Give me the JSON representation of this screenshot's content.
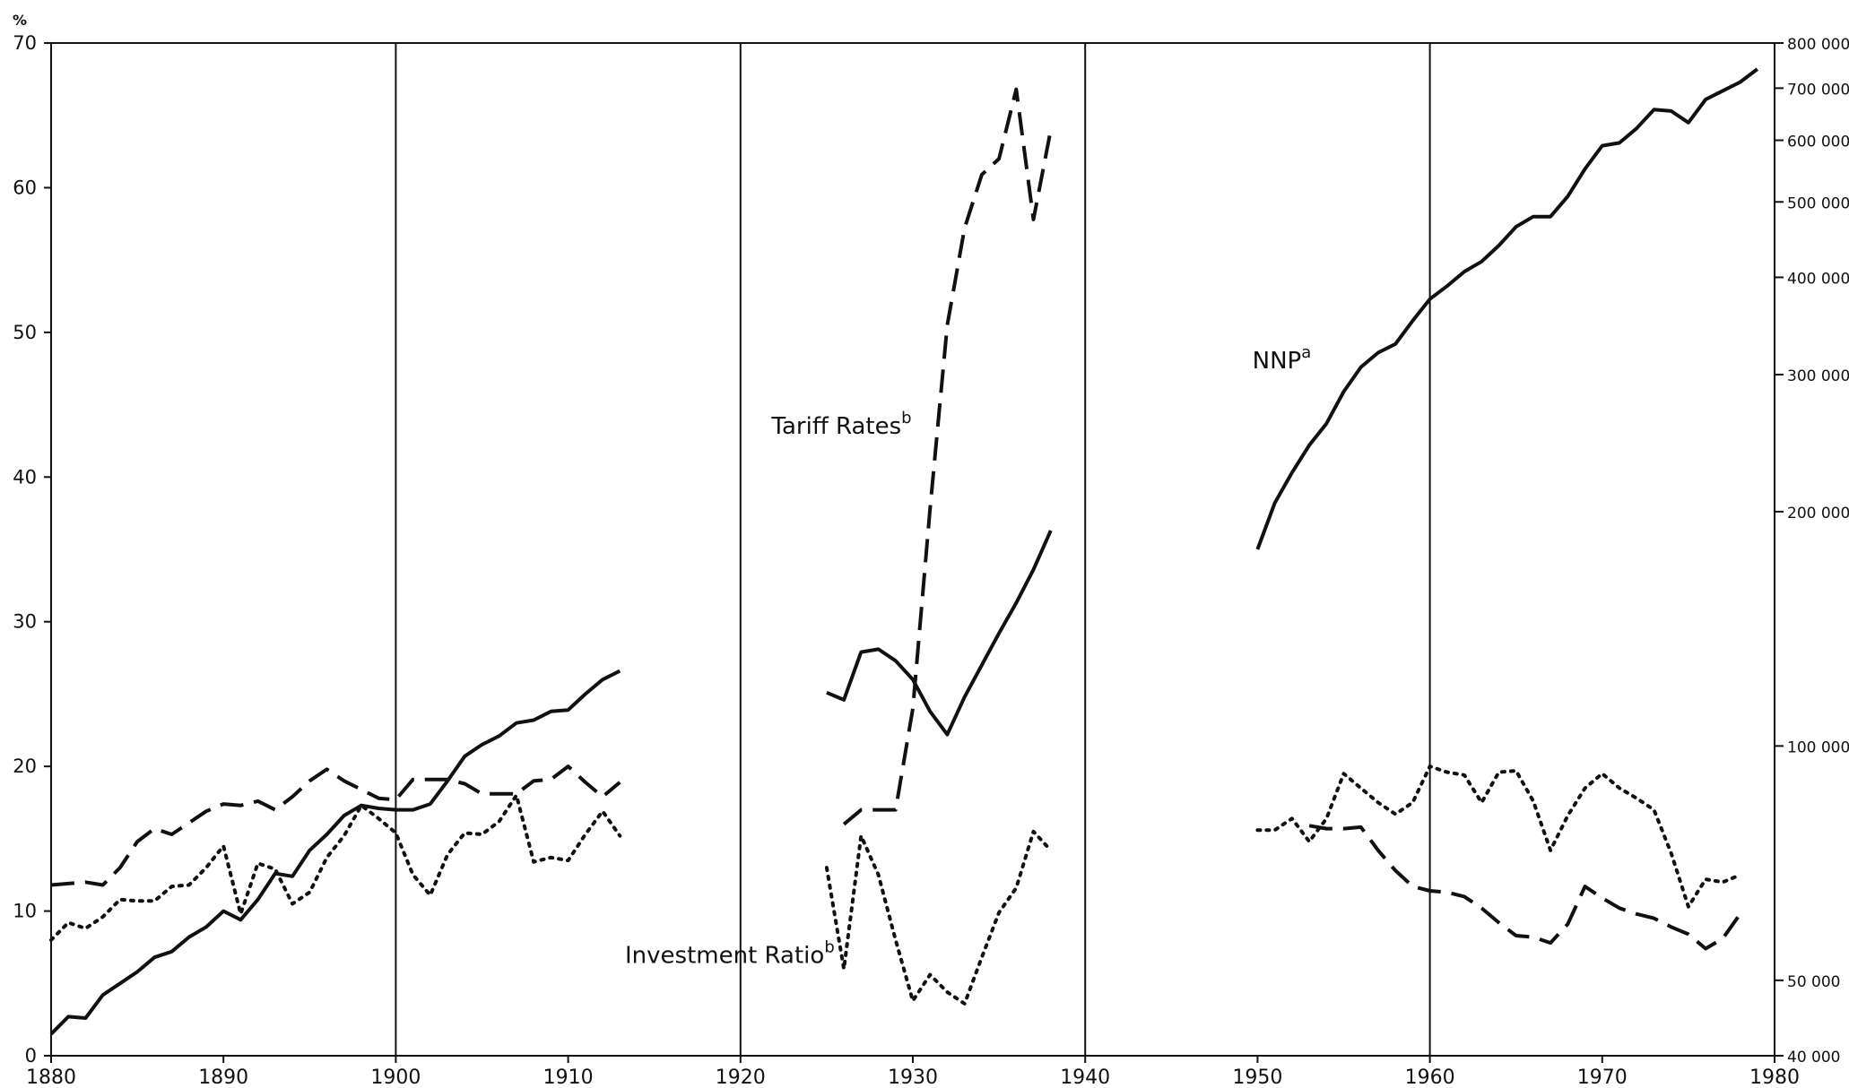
{
  "chart_data": {
    "type": "line",
    "title": "",
    "xlabel": "",
    "ylabel": "%",
    "y2label": "",
    "xlim": [
      1880,
      1980
    ],
    "ylim": [
      0,
      70
    ],
    "y2lim": [
      40000,
      800000
    ],
    "y2_scale": "log",
    "vertical_gridlines_at": [
      1900,
      1920,
      1940,
      1960
    ],
    "x_ticks": [
      1880,
      1890,
      1900,
      1910,
      1920,
      1930,
      1940,
      1950,
      1960,
      1970,
      1980
    ],
    "y_ticks": [
      0,
      10,
      20,
      30,
      40,
      50,
      60,
      70
    ],
    "y2_ticks": [
      40000,
      50000,
      100000,
      200000,
      300000,
      400000,
      500000,
      600000,
      700000,
      800000
    ],
    "y2_tick_labels": [
      "40 000",
      "50 000",
      "100 000",
      "200 000",
      "300 000",
      "400 000",
      "500 000",
      "600 000",
      "700 000",
      "800 000"
    ],
    "annotations": [
      {
        "text": "NNP",
        "sup": "a",
        "x": 1949.7,
        "y": 47.5
      },
      {
        "text": "Tariff Rates",
        "sup": "b",
        "x": 1921.8,
        "y": 43
      },
      {
        "text": "Investment Ratio",
        "sup": "b",
        "x": 1913.3,
        "y": 6.4
      }
    ],
    "series": [
      {
        "name": "NNP",
        "style": "solid",
        "axis": "right",
        "segments": [
          [
            [
              1880,
              1.5
            ],
            [
              1881,
              2.7
            ],
            [
              1882,
              2.6
            ],
            [
              1883,
              4.2
            ],
            [
              1884,
              5.0
            ],
            [
              1885,
              5.8
            ],
            [
              1886,
              6.8
            ],
            [
              1887,
              7.2
            ],
            [
              1888,
              8.2
            ],
            [
              1889,
              8.9
            ],
            [
              1890,
              10.0
            ],
            [
              1891,
              9.4
            ],
            [
              1892,
              10.8
            ],
            [
              1893,
              12.6
            ],
            [
              1894,
              12.4
            ],
            [
              1895,
              14.2
            ],
            [
              1896,
              15.3
            ],
            [
              1897,
              16.6
            ],
            [
              1898,
              17.3
            ],
            [
              1899,
              17.1
            ],
            [
              1900,
              17.0
            ],
            [
              1901,
              17.0
            ],
            [
              1902,
              17.4
            ],
            [
              1903,
              19.0
            ],
            [
              1904,
              20.7
            ],
            [
              1905,
              21.5
            ],
            [
              1906,
              22.1
            ],
            [
              1907,
              23.0
            ],
            [
              1908,
              23.2
            ],
            [
              1909,
              23.8
            ],
            [
              1910,
              23.9
            ],
            [
              1911,
              25.0
            ],
            [
              1912,
              26.0
            ],
            [
              1913,
              26.6
            ]
          ],
          [
            [
              1925,
              25.1
            ],
            [
              1926,
              24.6
            ],
            [
              1927,
              27.9
            ],
            [
              1928,
              28.1
            ],
            [
              1929,
              27.3
            ],
            [
              1930,
              26.0
            ],
            [
              1931,
              23.8
            ],
            [
              1932,
              22.2
            ],
            [
              1933,
              24.8
            ],
            [
              1934,
              27.0
            ],
            [
              1935,
              29.2
            ],
            [
              1936,
              31.3
            ],
            [
              1937,
              33.6
            ],
            [
              1938,
              36.3
            ]
          ],
          [
            [
              1950,
              35.0
            ],
            [
              1951,
              38.2
            ],
            [
              1952,
              40.3
            ],
            [
              1953,
              42.2
            ],
            [
              1954,
              43.7
            ],
            [
              1955,
              45.9
            ],
            [
              1956,
              47.6
            ],
            [
              1957,
              48.6
            ],
            [
              1958,
              49.2
            ],
            [
              1959,
              50.8
            ],
            [
              1960,
              52.3
            ],
            [
              1961,
              53.2
            ],
            [
              1962,
              54.2
            ],
            [
              1963,
              54.9
            ],
            [
              1964,
              56.0
            ],
            [
              1965,
              57.3
            ],
            [
              1966,
              58.0
            ],
            [
              1967,
              58.0
            ],
            [
              1968,
              59.4
            ],
            [
              1969,
              61.3
            ],
            [
              1970,
              62.9
            ],
            [
              1971,
              63.1
            ],
            [
              1972,
              64.1
            ],
            [
              1973,
              65.4
            ],
            [
              1974,
              65.3
            ],
            [
              1975,
              64.5
            ],
            [
              1976,
              66.1
            ],
            [
              1977,
              66.7
            ],
            [
              1978,
              67.3
            ],
            [
              1979,
              68.2
            ]
          ]
        ]
      },
      {
        "name": "Tariff Rates",
        "style": "dashed",
        "axis": "left",
        "segments": [
          [
            [
              1880,
              11.8
            ],
            [
              1881,
              11.9
            ],
            [
              1882,
              12.0
            ],
            [
              1883,
              11.8
            ],
            [
              1884,
              13.0
            ],
            [
              1885,
              14.8
            ],
            [
              1886,
              15.7
            ],
            [
              1887,
              15.3
            ],
            [
              1888,
              16.1
            ],
            [
              1889,
              16.9
            ],
            [
              1890,
              17.4
            ],
            [
              1891,
              17.3
            ],
            [
              1892,
              17.6
            ],
            [
              1893,
              17.0
            ],
            [
              1894,
              17.9
            ],
            [
              1895,
              19.0
            ],
            [
              1896,
              19.8
            ],
            [
              1897,
              19.0
            ],
            [
              1898,
              18.4
            ],
            [
              1899,
              17.8
            ],
            [
              1900,
              17.7
            ],
            [
              1901,
              19.1
            ],
            [
              1902,
              19.1
            ],
            [
              1903,
              19.1
            ],
            [
              1904,
              18.8
            ],
            [
              1905,
              18.1
            ],
            [
              1906,
              18.1
            ],
            [
              1907,
              18.1
            ],
            [
              1908,
              19.0
            ],
            [
              1909,
              19.1
            ],
            [
              1910,
              20.0
            ],
            [
              1911,
              18.9
            ],
            [
              1912,
              17.9
            ],
            [
              1913,
              18.9
            ]
          ],
          [
            [
              1926,
              16.0
            ],
            [
              1927,
              17.0
            ],
            [
              1928,
              17.0
            ],
            [
              1929,
              17.0
            ],
            [
              1930,
              24.0
            ],
            [
              1931,
              37.8
            ],
            [
              1932,
              50.5
            ],
            [
              1933,
              57.2
            ],
            [
              1934,
              60.9
            ],
            [
              1935,
              62.0
            ],
            [
              1936,
              66.8
            ],
            [
              1937,
              57.8
            ],
            [
              1938,
              64.0
            ]
          ],
          [
            [
              1953,
              15.9
            ],
            [
              1954,
              15.7
            ],
            [
              1955,
              15.7
            ],
            [
              1956,
              15.8
            ],
            [
              1957,
              14.2
            ],
            [
              1958,
              12.8
            ],
            [
              1959,
              11.7
            ],
            [
              1960,
              11.4
            ],
            [
              1961,
              11.3
            ],
            [
              1962,
              11.0
            ],
            [
              1963,
              10.2
            ],
            [
              1964,
              9.2
            ],
            [
              1965,
              8.3
            ],
            [
              1966,
              8.2
            ],
            [
              1967,
              7.8
            ],
            [
              1968,
              9.1
            ],
            [
              1969,
              11.7
            ],
            [
              1970,
              10.9
            ],
            [
              1971,
              10.2
            ],
            [
              1972,
              9.8
            ],
            [
              1973,
              9.5
            ],
            [
              1974,
              8.9
            ],
            [
              1975,
              8.4
            ],
            [
              1976,
              7.4
            ],
            [
              1977,
              8.1
            ],
            [
              1978,
              9.8
            ]
          ]
        ]
      },
      {
        "name": "Investment Ratio",
        "style": "dotted",
        "axis": "left",
        "segments": [
          [
            [
              1880,
              8.0
            ],
            [
              1881,
              9.2
            ],
            [
              1882,
              8.8
            ],
            [
              1883,
              9.6
            ],
            [
              1884,
              10.8
            ],
            [
              1885,
              10.7
            ],
            [
              1886,
              10.7
            ],
            [
              1887,
              11.7
            ],
            [
              1888,
              11.8
            ],
            [
              1889,
              13.0
            ],
            [
              1890,
              14.5
            ],
            [
              1891,
              9.8
            ],
            [
              1892,
              13.3
            ],
            [
              1893,
              12.9
            ],
            [
              1894,
              10.5
            ],
            [
              1895,
              11.3
            ],
            [
              1896,
              13.7
            ],
            [
              1897,
              15.2
            ],
            [
              1898,
              17.3
            ],
            [
              1899,
              16.4
            ],
            [
              1900,
              15.4
            ],
            [
              1901,
              12.5
            ],
            [
              1902,
              11.1
            ],
            [
              1903,
              13.9
            ],
            [
              1904,
              15.4
            ],
            [
              1905,
              15.3
            ],
            [
              1906,
              16.2
            ],
            [
              1907,
              18.0
            ],
            [
              1908,
              13.4
            ],
            [
              1909,
              13.7
            ],
            [
              1910,
              13.5
            ],
            [
              1911,
              15.3
            ],
            [
              1912,
              16.9
            ],
            [
              1913,
              15.2
            ]
          ],
          [
            [
              1925,
              13.0
            ],
            [
              1926,
              6.0
            ],
            [
              1927,
              15.2
            ],
            [
              1928,
              12.5
            ],
            [
              1929,
              8.0
            ],
            [
              1930,
              3.8
            ],
            [
              1931,
              5.6
            ],
            [
              1932,
              4.4
            ],
            [
              1933,
              3.6
            ],
            [
              1934,
              6.8
            ],
            [
              1935,
              9.9
            ],
            [
              1936,
              11.6
            ],
            [
              1937,
              15.5
            ],
            [
              1938,
              14.2
            ]
          ],
          [
            [
              1950,
              15.6
            ],
            [
              1951,
              15.6
            ],
            [
              1952,
              16.4
            ],
            [
              1953,
              14.8
            ],
            [
              1954,
              16.4
            ],
            [
              1955,
              19.5
            ],
            [
              1956,
              18.5
            ],
            [
              1957,
              17.5
            ],
            [
              1958,
              16.7
            ],
            [
              1959,
              17.5
            ],
            [
              1960,
              20.0
            ],
            [
              1961,
              19.6
            ],
            [
              1962,
              19.4
            ],
            [
              1963,
              17.5
            ],
            [
              1964,
              19.6
            ],
            [
              1965,
              19.7
            ],
            [
              1966,
              17.6
            ],
            [
              1967,
              14.2
            ],
            [
              1968,
              16.6
            ],
            [
              1969,
              18.5
            ],
            [
              1970,
              19.5
            ],
            [
              1971,
              18.5
            ],
            [
              1972,
              17.8
            ],
            [
              1973,
              17.0
            ],
            [
              1974,
              14.0
            ],
            [
              1975,
              10.3
            ],
            [
              1976,
              12.2
            ],
            [
              1977,
              12.0
            ],
            [
              1978,
              12.5
            ]
          ]
        ]
      }
    ]
  }
}
